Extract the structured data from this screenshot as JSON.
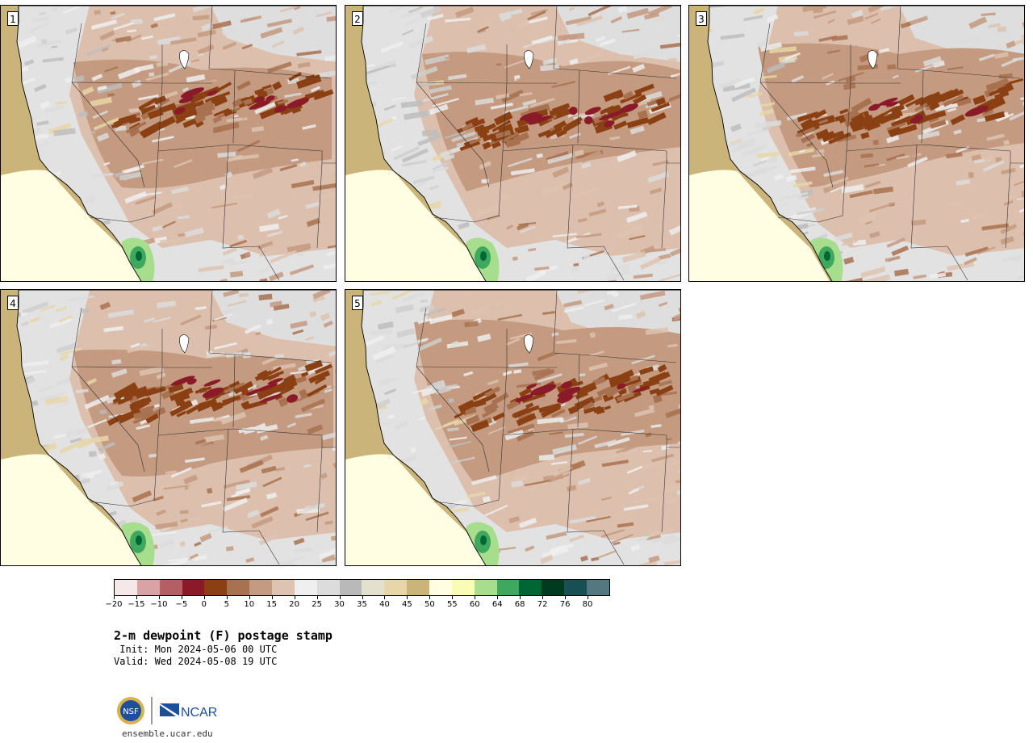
{
  "title": "2-m dewpoint (F) postage stamp",
  "init": " Init: Mon 2024-05-06 00 UTC",
  "valid": "Valid: Wed 2024-05-08 19 UTC",
  "website": "ensemble.ucar.edu",
  "logos": {
    "nsf": "NSF",
    "ncar": "NCAR"
  },
  "stamps": [
    {
      "number": "1"
    },
    {
      "number": "2"
    },
    {
      "number": "3"
    },
    {
      "number": "4"
    },
    {
      "number": "5"
    }
  ],
  "colorbar": {
    "ticks": [
      "−20",
      "−15",
      "−10",
      "−5",
      "0",
      "5",
      "10",
      "15",
      "20",
      "25",
      "30",
      "35",
      "40",
      "45",
      "50",
      "55",
      "60",
      "64",
      "68",
      "72",
      "76",
      "80"
    ],
    "colors": [
      "#f6e8e8",
      "#d9a3a5",
      "#b45f64",
      "#8b1a28",
      "#8a4012",
      "#a8714f",
      "#c49a80",
      "#ddc3b0",
      "#efefef",
      "#dcdcdc",
      "#b9b9b9",
      "#e3e0d0",
      "#e6d6a8",
      "#cbb479",
      "#fffde2",
      "#fafcb6",
      "#a7de8e",
      "#3fa85f",
      "#006633",
      "#003b1f",
      "#184f55",
      "#54787f"
    ],
    "units": "F"
  },
  "colors": {
    "ocean": "#e6ddc6",
    "background": "#ffffff"
  }
}
